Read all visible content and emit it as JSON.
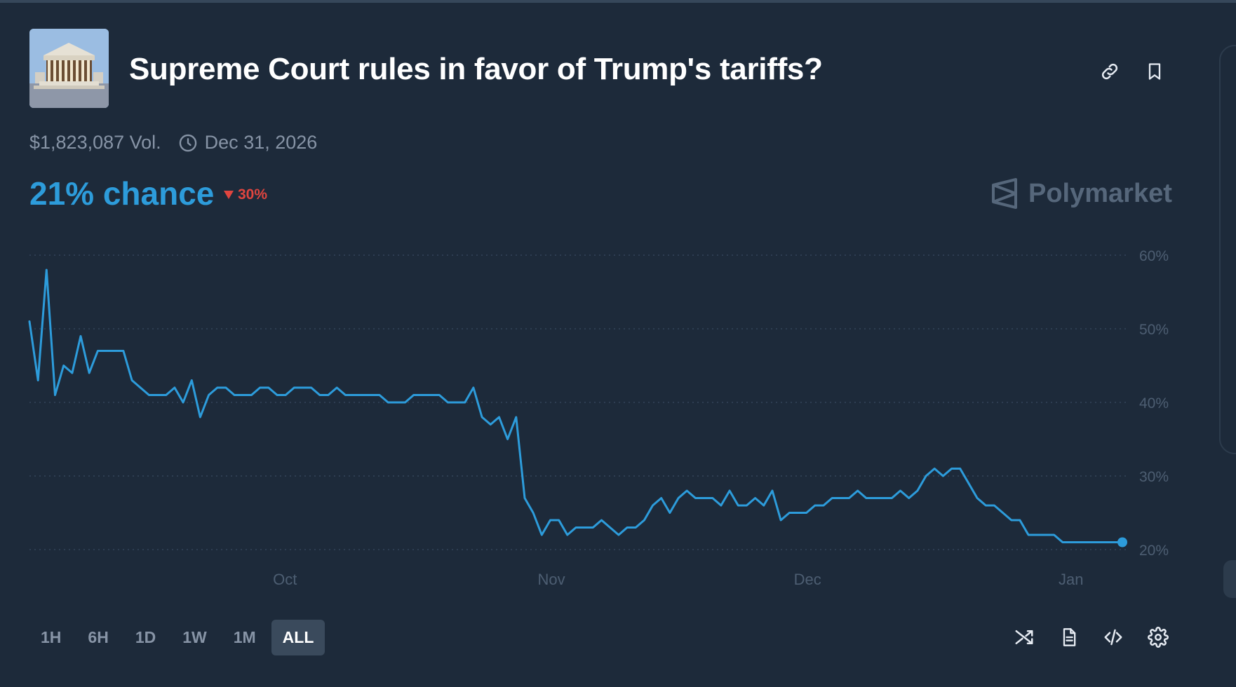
{
  "market": {
    "title": "Supreme Court rules in favor of Trump's tariffs?",
    "volume": "$1,823,087 Vol.",
    "end_date": "Dec 31, 2026",
    "chance": "21% chance",
    "change": "30%",
    "brand": "Polymarket"
  },
  "colors": {
    "background": "#1d2a3a",
    "line": "#2d9cdb",
    "down": "#e0453f",
    "muted": "#8794a6"
  },
  "icons": {
    "link": "link-icon",
    "bookmark": "bookmark-icon",
    "clock": "clock-icon",
    "shuffle": "shuffle-icon",
    "document": "document-icon",
    "embed": "code-icon",
    "settings": "gear-icon"
  },
  "time_ranges": [
    {
      "label": "1H",
      "active": false
    },
    {
      "label": "6H",
      "active": false
    },
    {
      "label": "1D",
      "active": false
    },
    {
      "label": "1W",
      "active": false
    },
    {
      "label": "1M",
      "active": false
    },
    {
      "label": "ALL",
      "active": true
    }
  ],
  "chart_data": {
    "type": "line",
    "title": "",
    "xlabel": "",
    "ylabel": "",
    "y_ticks": [
      "60%",
      "50%",
      "40%",
      "30%",
      "20%"
    ],
    "y_tick_values": [
      60,
      50,
      40,
      30,
      20
    ],
    "ylim": [
      20,
      60
    ],
    "x_ticks": [
      "Oct",
      "Nov",
      "Dec",
      "Jan"
    ],
    "x_tick_dates": [
      "2025-10-01",
      "2025-11-01",
      "2025-12-01",
      "2026-01-01"
    ],
    "grid": true,
    "legend": "none",
    "series": [
      {
        "x": [
          "2025-09-01",
          "2025-09-02",
          "2025-09-03",
          "2025-09-04",
          "2025-09-05",
          "2025-09-06",
          "2025-09-07",
          "2025-09-08",
          "2025-09-09",
          "2025-09-10",
          "2025-09-11",
          "2025-09-12",
          "2025-09-13",
          "2025-09-14",
          "2025-09-15",
          "2025-09-16",
          "2025-09-17",
          "2025-09-18",
          "2025-09-19",
          "2025-09-20",
          "2025-09-21",
          "2025-09-22",
          "2025-09-23",
          "2025-09-24",
          "2025-09-25",
          "2025-09-26",
          "2025-09-27",
          "2025-09-28",
          "2025-09-29",
          "2025-09-30",
          "2025-10-01",
          "2025-10-02",
          "2025-10-03",
          "2025-10-04",
          "2025-10-05",
          "2025-10-06",
          "2025-10-07",
          "2025-10-08",
          "2025-10-09",
          "2025-10-10",
          "2025-10-11",
          "2025-10-12",
          "2025-10-13",
          "2025-10-14",
          "2025-10-15",
          "2025-10-16",
          "2025-10-17",
          "2025-10-18",
          "2025-10-19",
          "2025-10-20",
          "2025-10-21",
          "2025-10-22",
          "2025-10-23",
          "2025-10-24",
          "2025-10-25",
          "2025-10-26",
          "2025-10-27",
          "2025-10-28",
          "2025-10-29",
          "2025-10-30",
          "2025-10-31",
          "2025-11-01",
          "2025-11-02",
          "2025-11-03",
          "2025-11-04",
          "2025-11-05",
          "2025-11-06",
          "2025-11-07",
          "2025-11-08",
          "2025-11-09",
          "2025-11-10",
          "2025-11-11",
          "2025-11-12",
          "2025-11-13",
          "2025-11-14",
          "2025-11-15",
          "2025-11-16",
          "2025-11-17",
          "2025-11-18",
          "2025-11-19",
          "2025-11-20",
          "2025-11-21",
          "2025-11-22",
          "2025-11-23",
          "2025-11-24",
          "2025-11-25",
          "2025-11-26",
          "2025-11-27",
          "2025-11-28",
          "2025-11-29",
          "2025-11-30",
          "2025-12-01",
          "2025-12-02",
          "2025-12-03",
          "2025-12-04",
          "2025-12-05",
          "2025-12-06",
          "2025-12-07",
          "2025-12-08",
          "2025-12-09",
          "2025-12-10",
          "2025-12-11",
          "2025-12-12",
          "2025-12-13",
          "2025-12-14",
          "2025-12-15",
          "2025-12-16",
          "2025-12-17",
          "2025-12-18",
          "2025-12-19",
          "2025-12-20",
          "2025-12-21",
          "2025-12-22",
          "2025-12-23",
          "2025-12-24",
          "2025-12-25",
          "2025-12-26",
          "2025-12-27",
          "2025-12-28",
          "2025-12-29",
          "2025-12-30",
          "2025-12-31",
          "2026-01-01",
          "2026-01-02",
          "2026-01-03",
          "2026-01-04",
          "2026-01-05",
          "2026-01-06",
          "2026-01-07"
        ],
        "y": [
          51,
          43,
          58,
          41,
          45,
          44,
          49,
          44,
          47,
          47,
          47,
          47,
          43,
          42,
          41,
          41,
          41,
          42,
          40,
          43,
          38,
          41,
          42,
          42,
          41,
          41,
          41,
          42,
          42,
          41,
          41,
          42,
          42,
          42,
          41,
          41,
          42,
          41,
          41,
          41,
          41,
          41,
          40,
          40,
          40,
          41,
          41,
          41,
          41,
          40,
          40,
          40,
          42,
          38,
          37,
          38,
          35,
          38,
          27,
          25,
          22,
          24,
          24,
          22,
          23,
          23,
          23,
          24,
          23,
          22,
          23,
          23,
          24,
          26,
          27,
          25,
          27,
          28,
          27,
          27,
          27,
          26,
          28,
          26,
          26,
          27,
          26,
          28,
          24,
          25,
          25,
          25,
          26,
          26,
          27,
          27,
          27,
          28,
          27,
          27,
          27,
          27,
          28,
          27,
          28,
          30,
          31,
          30,
          31,
          31,
          29,
          27,
          26,
          26,
          25,
          24,
          24,
          22,
          22,
          22,
          22,
          21,
          21,
          21,
          21,
          21,
          21,
          21,
          21
        ],
        "end_value": 21
      }
    ]
  }
}
